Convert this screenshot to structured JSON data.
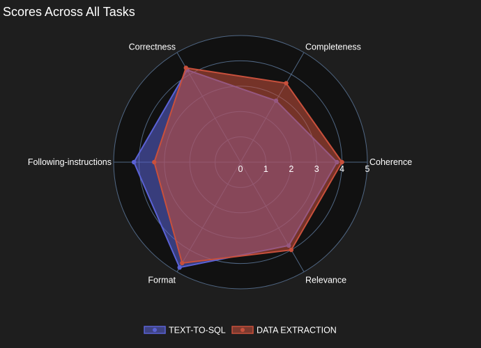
{
  "chart_data": {
    "type": "radar",
    "title": "Scores Across All Tasks",
    "axes": [
      "Coherence",
      "Completeness",
      "Correctness",
      "Following-instructions",
      "Format",
      "Relevance"
    ],
    "radial_range": [
      0,
      5
    ],
    "radial_ticks": [
      "0",
      "1",
      "2",
      "3",
      "4",
      "5"
    ],
    "grid": true,
    "legend_position": "bottom-center",
    "series": [
      {
        "name": "TEXT-TO-SQL",
        "color": "#5a62d6",
        "values": [
          3.8,
          2.8,
          4.2,
          4.2,
          4.8,
          3.8
        ]
      },
      {
        "name": "DATA EXTRACTION",
        "color": "#c8503c",
        "values": [
          4.0,
          3.6,
          4.3,
          3.4,
          4.6,
          4.0
        ]
      }
    ]
  }
}
